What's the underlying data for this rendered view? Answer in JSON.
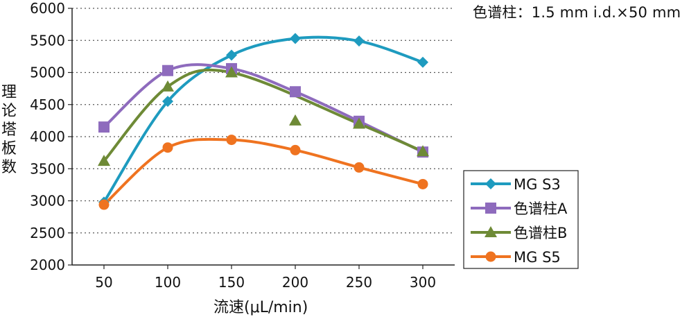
{
  "note": "色谱柱：1.5 mm i.d.×50 mm",
  "chart_data": {
    "type": "line",
    "ylabel": "理论塔板数",
    "xlabel": "流速(μL/min)",
    "x": [
      50,
      100,
      150,
      200,
      250,
      300
    ],
    "xlim": [
      25,
      325
    ],
    "ylim": [
      2000,
      6000
    ],
    "yticks": [
      2000,
      2500,
      3000,
      3500,
      4000,
      4500,
      5000,
      5500,
      6000
    ],
    "grid": "horizontal dotted",
    "legend_position": "lower-right, outside plot",
    "series": [
      {
        "name": "MG S3",
        "marker": "diamond",
        "color": "#1e9bbf",
        "values": [
          2980,
          4550,
          5270,
          5530,
          5490,
          5160
        ]
      },
      {
        "name": "色谱柱A",
        "marker": "square",
        "color": "#8e6bbd",
        "values": [
          4150,
          5030,
          5060,
          4700,
          4240,
          3760
        ]
      },
      {
        "name": "色谱柱B",
        "marker": "triangle",
        "color": "#6e8a36",
        "values": [
          3620,
          4780,
          5000,
          4250,
          4200,
          3770
        ]
      },
      {
        "name": "MG S5",
        "marker": "circle",
        "color": "#ef7320",
        "values": [
          2940,
          3830,
          3950,
          3790,
          3520,
          3260
        ]
      }
    ]
  }
}
